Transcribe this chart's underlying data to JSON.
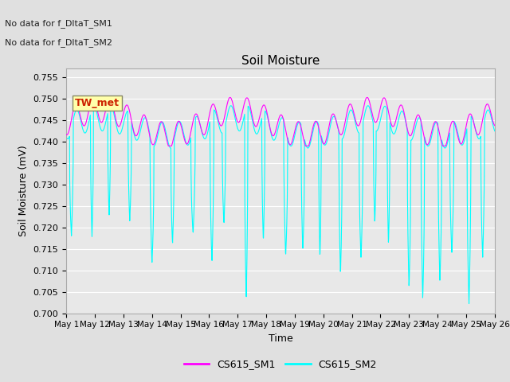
{
  "title": "Soil Moisture",
  "ylabel": "Soil Moisture (mV)",
  "xlabel": "Time",
  "annotations": [
    "No data for f_DltaT_SM1",
    "No data for f_DltaT_SM2"
  ],
  "tw_met_label": "TW_met",
  "legend_labels": [
    "CS615_SM1",
    "CS615_SM2"
  ],
  "sm1_color": "#ff00ff",
  "sm2_color": "#00ffff",
  "ylim": [
    0.7,
    0.757
  ],
  "yticks": [
    0.7,
    0.705,
    0.71,
    0.715,
    0.72,
    0.725,
    0.73,
    0.735,
    0.74,
    0.745,
    0.75,
    0.755
  ],
  "xtick_labels": [
    "May 1",
    "May 12",
    "May 13",
    "May 14",
    "May 15",
    "May 16",
    "May 17",
    "May 18",
    "May 19",
    "May 20",
    "May 21",
    "May 22",
    "May 23",
    "May 24",
    "May 25",
    "May 26"
  ],
  "bg_color": "#e0e0e0",
  "plot_bg_color": "#e8e8e8",
  "grid_color": "#ffffff",
  "num_points": 2000,
  "num_days": 25
}
